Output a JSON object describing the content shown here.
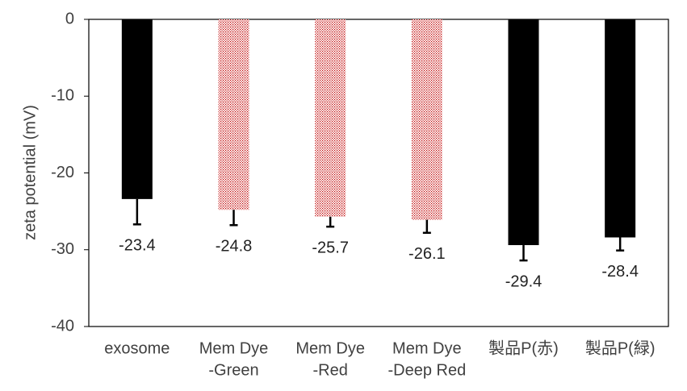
{
  "chart_data": {
    "type": "bar",
    "y_label": "zeta potential (mV)",
    "categories": [
      [
        "exosome"
      ],
      [
        "Mem Dye",
        "-Green"
      ],
      [
        "Mem Dye",
        "-Red"
      ],
      [
        "Mem Dye",
        "-Deep Red"
      ],
      [
        "製品P(赤)"
      ],
      [
        "製品P(緑)"
      ]
    ],
    "values": [
      -23.4,
      -24.8,
      -25.7,
      -26.1,
      -29.4,
      -28.4
    ],
    "errors": [
      3.3,
      2.0,
      1.3,
      1.7,
      2.0,
      1.7
    ],
    "colors": [
      "#000000",
      "#c00000",
      "#c00000",
      "#c00000",
      "#000000",
      "#000000"
    ],
    "patterns": [
      "solid",
      "dotted",
      "dotted",
      "dotted",
      "solid",
      "solid"
    ],
    "ylim": [
      -40,
      0
    ],
    "yticks": [
      0,
      -10,
      -20,
      -30,
      -40
    ],
    "grid": false
  }
}
